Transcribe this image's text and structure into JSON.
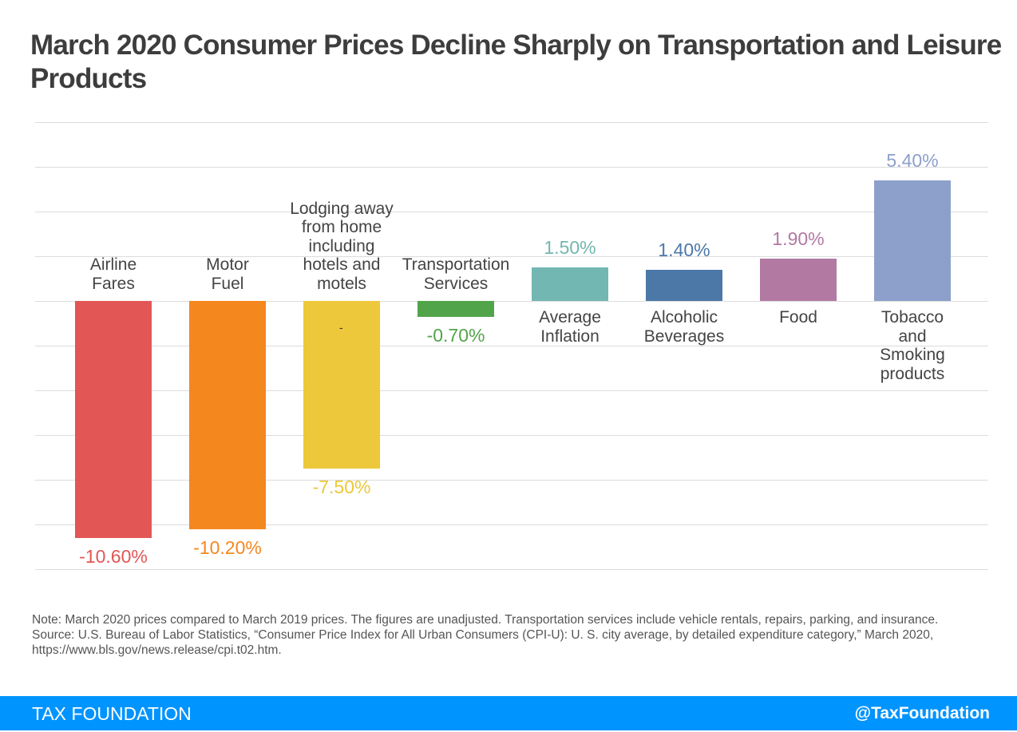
{
  "title": "March 2020 Consumer Prices Decline Sharply on Transportation and Leisure Products",
  "chart_data": {
    "type": "bar",
    "title": "March 2020 Consumer Prices Decline Sharply on Transportation and Leisure Products",
    "xlabel": "",
    "ylabel": "",
    "ylim": [
      -12,
      8
    ],
    "grid": true,
    "categories": [
      "Airline\nFares",
      "Motor\nFuel",
      "Lodging away\nfrom home\nincluding\nhotels and\nmotels",
      "Transportation\nServices",
      "Average\nInflation",
      "Alcoholic\nBeverages",
      "Food",
      "Tobacco\nand\nSmoking\nproducts"
    ],
    "values": [
      -10.6,
      -10.2,
      -7.5,
      -0.7,
      1.5,
      1.4,
      1.9,
      5.4
    ],
    "value_labels": [
      "-10.60%",
      "-10.20%",
      "-7.50%",
      "-0.70%",
      "1.50%",
      "1.40%",
      "1.90%",
      "5.40%"
    ],
    "colors": [
      "#e35656",
      "#f4871e",
      "#edc83a",
      "#52a44a",
      "#72b7b2",
      "#4c78a8",
      "#b279a2",
      "#8da0cb"
    ],
    "annotations": [
      "-"
    ]
  },
  "notes": {
    "note": "Note: March 2020 prices compared to March 2019 prices. The figures are unadjusted. Transportation services include vehicle rentals, repairs, parking, and insurance.",
    "source": "Source: U.S. Bureau of Labor Statistics, “Consumer Price Index for All Urban Consumers (CPI-U): U. S. city average, by detailed expenditure category,” March 2020, https://www.bls.gov/news.release/cpi.t02.htm."
  },
  "footer": {
    "brand": "TAX FOUNDATION",
    "handle": "@TaxFoundation"
  }
}
